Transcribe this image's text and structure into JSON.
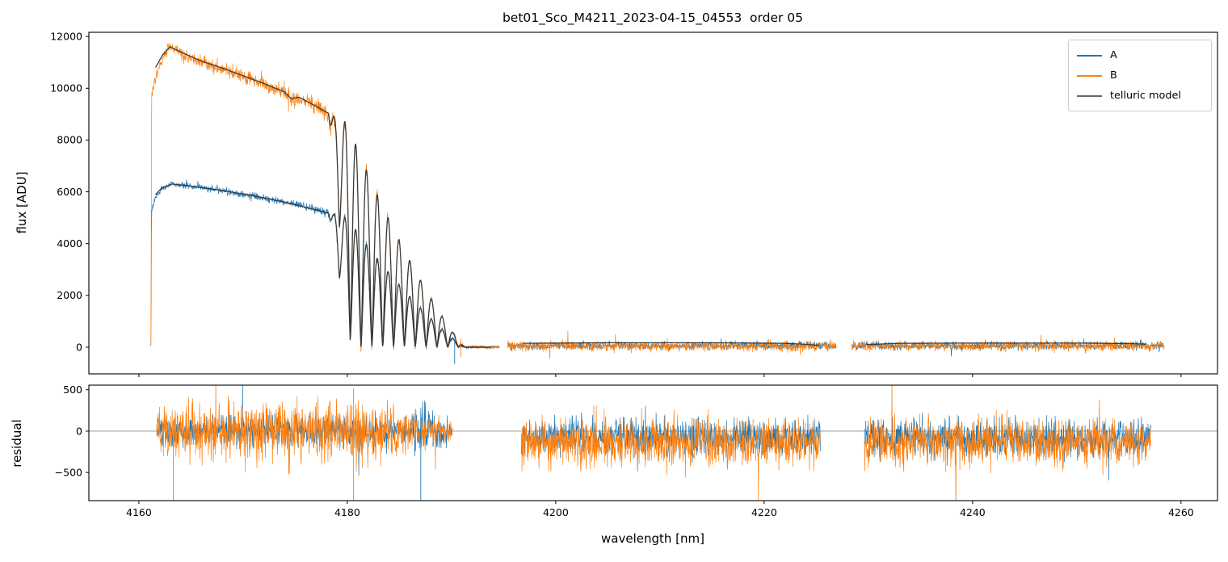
{
  "figure": {
    "title": "bet01_Sco_M4211_2023-04-15_04553  order 05",
    "background": "#ffffff"
  },
  "colors": {
    "A": "#1f77b4",
    "B": "#ff7f0e",
    "model": "#3a3a3a",
    "model_legend": "#666666",
    "axis": "#000000",
    "zero_line": "#8a8a8a"
  },
  "chart_data": [
    {
      "type": "line",
      "id": "flux-panel",
      "ylabel": "flux [ADU]",
      "xlim": [
        4155.2,
        4263.5
      ],
      "ylim": [
        -1030,
        12160
      ],
      "xticks": {
        "values": [
          4160,
          4180,
          4200,
          4220,
          4240,
          4260
        ],
        "labels": [
          "4160",
          "4180",
          "4200",
          "4220",
          "4240",
          "4260"
        ],
        "show_labels": false
      },
      "yticks": {
        "values": [
          0,
          2000,
          4000,
          6000,
          8000,
          10000,
          12000
        ],
        "labels": [
          "0",
          "2000",
          "4000",
          "6000",
          "8000",
          "10000",
          "12000"
        ]
      },
      "legend": {
        "position": "upper right",
        "items": [
          {
            "label": "A",
            "color": "#1f77b4"
          },
          {
            "label": "B",
            "color": "#ff7f0e"
          },
          {
            "label": "telluric model",
            "color": "#666666"
          }
        ]
      },
      "telluric_band": {
        "start": 4178.2,
        "period": 1.04,
        "cutoff": 4191.3,
        "depth_ramp": 2.2,
        "peak_env_start": 4180.0,
        "peak_env_power": 1.15,
        "hump_power": 1.25
      },
      "series": [
        {
          "name": "A",
          "color": "#1f77b4",
          "lw": 0.7,
          "segments": [
            {
              "x0": 4161.15,
              "x1": 4194.6,
              "n": 1150,
              "telluric": true,
              "anchors": [
                [
                  4161.15,
                  30
                ],
                [
                  4161.22,
                  5250
                ],
                [
                  4161.6,
                  5800
                ],
                [
                  4162.2,
                  6100
                ],
                [
                  4163.2,
                  6330
                ],
                [
                  4164.5,
                  6250
                ],
                [
                  4166,
                  6180
                ],
                [
                  4168,
                  6050
                ],
                [
                  4170,
                  5900
                ],
                [
                  4172,
                  5750
                ],
                [
                  4174,
                  5600
                ],
                [
                  4175.5,
                  5480
                ],
                [
                  4177,
                  5300
                ],
                [
                  4178.5,
                  5150
                ],
                [
                  4180,
                  5000
                ],
                [
                  4182,
                  4850
                ],
                [
                  4185,
                  4700
                ],
                [
                  4188,
                  4600
                ],
                [
                  4191.3,
                  4500
                ],
                [
                  4194.6,
                  4430
                ]
              ],
              "noise": [
                [
                  4161.3,
                  80
                ],
                [
                  4165,
                  90
                ],
                [
                  4172,
                  100
                ],
                [
                  4178,
                  120
                ],
                [
                  4182,
                  140
                ],
                [
                  4185,
                  90
                ],
                [
                  4188,
                  60
                ],
                [
                  4191,
                  45
                ],
                [
                  4194.6,
                  40
                ]
              ]
            },
            {
              "x0": 4195.4,
              "x1": 4226.9,
              "n": 1000,
              "anchors": [
                [
                  4195.4,
                  60
                ],
                [
                  4226.9,
                  60
                ]
              ],
              "noise": 115
            },
            {
              "x0": 4228.4,
              "x1": 4258.4,
              "n": 960,
              "anchors": [
                [
                  4228.4,
                  60
                ],
                [
                  4258.4,
                  60
                ]
              ],
              "noise": 115
            }
          ]
        },
        {
          "name": "B",
          "color": "#ff7f0e",
          "lw": 0.7,
          "segments": [
            {
              "x0": 4161.15,
              "x1": 4194.6,
              "n": 1150,
              "telluric": true,
              "anchors": [
                [
                  4161.15,
                  50
                ],
                [
                  4161.22,
                  9600
                ],
                [
                  4161.5,
                  10300
                ],
                [
                  4162,
                  10900
                ],
                [
                  4162.9,
                  11600
                ],
                [
                  4163.6,
                  11500
                ],
                [
                  4164.5,
                  11250
                ],
                [
                  4166,
                  11000
                ],
                [
                  4168,
                  10750
                ],
                [
                  4170,
                  10450
                ],
                [
                  4172,
                  10150
                ],
                [
                  4174,
                  9800
                ],
                [
                  4174.6,
                  9550
                ],
                [
                  4175.4,
                  9600
                ],
                [
                  4176.5,
                  9450
                ],
                [
                  4178,
                  9050
                ],
                [
                  4179.5,
                  8750
                ],
                [
                  4181,
                  8500
                ],
                [
                  4183,
                  8250
                ],
                [
                  4185,
                  8050
                ],
                [
                  4188,
                  7850
                ],
                [
                  4191.3,
                  7650
                ],
                [
                  4194.6,
                  7500
                ]
              ],
              "noise": [
                [
                  4161.3,
                  160
                ],
                [
                  4165,
                  180
                ],
                [
                  4170,
                  200
                ],
                [
                  4176,
                  220
                ],
                [
                  4180,
                  280
                ],
                [
                  4183,
                  220
                ],
                [
                  4185.5,
                  160
                ],
                [
                  4188,
                  110
                ],
                [
                  4191,
                  60
                ],
                [
                  4194.6,
                  50
                ]
              ]
            },
            {
              "x0": 4195.4,
              "x1": 4226.9,
              "n": 1000,
              "anchors": [
                [
                  4195.4,
                  40
                ],
                [
                  4226.9,
                  40
                ]
              ],
              "noise": 145
            },
            {
              "x0": 4228.4,
              "x1": 4258.4,
              "n": 960,
              "anchors": [
                [
                  4228.4,
                  40
                ],
                [
                  4258.4,
                  40
                ]
              ],
              "noise": 145
            }
          ]
        },
        {
          "name": "telluric model",
          "color": "#3a3a3a",
          "lw": 1.3,
          "segments": [
            {
              "x0": 4161.6,
              "x1": 4193.8,
              "n": 900,
              "telluric": true,
              "anchors": [
                [
                  4161.6,
                  5900
                ],
                [
                  4162.2,
                  6150
                ],
                [
                  4163.2,
                  6300
                ],
                [
                  4165,
                  6220
                ],
                [
                  4168,
                  6050
                ],
                [
                  4171,
                  5850
                ],
                [
                  4174,
                  5600
                ],
                [
                  4177,
                  5300
                ],
                [
                  4180,
                  5000
                ],
                [
                  4183,
                  4800
                ],
                [
                  4186,
                  4650
                ],
                [
                  4191.3,
                  4480
                ],
                [
                  4193.8,
                  4450
                ]
              ],
              "noise": 0
            },
            {
              "x0": 4161.6,
              "x1": 4193.8,
              "n": 900,
              "telluric": true,
              "anchors": [
                [
                  4161.6,
                  10800
                ],
                [
                  4162.3,
                  11300
                ],
                [
                  4163,
                  11600
                ],
                [
                  4164,
                  11400
                ],
                [
                  4166,
                  11050
                ],
                [
                  4168,
                  10780
                ],
                [
                  4170,
                  10480
                ],
                [
                  4172,
                  10180
                ],
                [
                  4174,
                  9850
                ],
                [
                  4174.6,
                  9600
                ],
                [
                  4175.4,
                  9650
                ],
                [
                  4177,
                  9300
                ],
                [
                  4179,
                  8850
                ],
                [
                  4181,
                  8500
                ],
                [
                  4183,
                  8250
                ],
                [
                  4185,
                  8050
                ],
                [
                  4188,
                  7850
                ],
                [
                  4191.3,
                  7650
                ],
                [
                  4193.8,
                  7500
                ]
              ],
              "noise": 0
            },
            {
              "x0": 4196.9,
              "x1": 4225.3,
              "n": 160,
              "anchors": [
                [
                  4196.9,
                  150
                ],
                [
                  4205,
                  170
                ],
                [
                  4215,
                  170
                ],
                [
                  4222,
                  150
                ],
                [
                  4224,
                  110
                ],
                [
                  4225.3,
                  70
                ]
              ],
              "noise": 0
            },
            {
              "x0": 4229.8,
              "x1": 4256.6,
              "n": 160,
              "anchors": [
                [
                  4229.8,
                  100
                ],
                [
                  4233,
                  150
                ],
                [
                  4240,
                  160
                ],
                [
                  4250,
                  160
                ],
                [
                  4255,
                  140
                ],
                [
                  4256.6,
                  120
                ]
              ],
              "noise": 0
            }
          ]
        }
      ],
      "spikes": [
        {
          "series": "A",
          "x": 4190.3,
          "y1": 200,
          "y2": -650
        },
        {
          "series": "B",
          "x": 4190.9,
          "y1": 100,
          "y2": -380
        }
      ]
    },
    {
      "type": "line",
      "id": "residual-panel",
      "ylabel": "residual",
      "xlabel": "wavelength [nm]",
      "xlim": [
        4155.2,
        4263.5
      ],
      "ylim": [
        -840,
        556
      ],
      "zero_line": true,
      "xticks": {
        "values": [
          4160,
          4180,
          4200,
          4220,
          4240,
          4260
        ],
        "labels": [
          "4160",
          "4180",
          "4200",
          "4220",
          "4240",
          "4260"
        ],
        "show_labels": true
      },
      "yticks": {
        "values": [
          500,
          0,
          -500
        ],
        "labels": [
          "500",
          "0",
          "−500"
        ]
      },
      "series": [
        {
          "name": "A",
          "color": "#1f77b4",
          "lw": 0.7,
          "segments": [
            {
              "x0": 4161.7,
              "x1": 4190.1,
              "n": 950,
              "anchors": [
                [
                  4161.7,
                  0
                ],
                [
                  4190.1,
                  0
                ]
              ],
              "noise": [
                [
                  4161.7,
                  120
                ],
                [
                  4170,
                  140
                ],
                [
                  4178,
                  150
                ],
                [
                  4183,
                  150
                ],
                [
                  4185.5,
                  110
                ],
                [
                  4186.5,
                  260
                ],
                [
                  4188,
                  200
                ],
                [
                  4190.1,
                  90
                ]
              ]
            },
            {
              "x0": 4196.7,
              "x1": 4225.4,
              "n": 950,
              "anchors": [
                [
                  4196.7,
                  -80
                ],
                [
                  4225.4,
                  -80
                ]
              ],
              "noise": 170
            },
            {
              "x0": 4229.6,
              "x1": 4257.1,
              "n": 920,
              "anchors": [
                [
                  4229.6,
                  -80
                ],
                [
                  4257.1,
                  -80
                ]
              ],
              "noise": 170
            }
          ]
        },
        {
          "name": "B",
          "color": "#ff7f0e",
          "lw": 0.7,
          "segments": [
            {
              "x0": 4161.7,
              "x1": 4190.1,
              "n": 950,
              "anchors": [
                [
                  4161.7,
                  0
                ],
                [
                  4190.1,
                  0
                ]
              ],
              "noise": [
                [
                  4161.7,
                  240
                ],
                [
                  4166,
                  260
                ],
                [
                  4172,
                  270
                ],
                [
                  4178,
                  290
                ],
                [
                  4182,
                  300
                ],
                [
                  4184.5,
                  260
                ],
                [
                  4186,
                  180
                ],
                [
                  4187.5,
                  150
                ],
                [
                  4189,
                  120
                ],
                [
                  4190.1,
                  80
                ]
              ]
            },
            {
              "x0": 4196.7,
              "x1": 4225.4,
              "n": 950,
              "anchors": [
                [
                  4196.7,
                  -140
                ],
                [
                  4225.4,
                  -140
                ]
              ],
              "noise": 220
            },
            {
              "x0": 4229.6,
              "x1": 4257.1,
              "n": 920,
              "anchors": [
                [
                  4229.6,
                  -140
                ],
                [
                  4257.1,
                  -140
                ]
              ],
              "noise": 220
            }
          ]
        }
      ],
      "spikes": [
        {
          "series": "A",
          "x": 4187.05,
          "y1": 200,
          "y2": -840
        },
        {
          "series": "B",
          "x": 4163.3,
          "y1": 120,
          "y2": -840
        },
        {
          "series": "B",
          "x": 4180.6,
          "y1": 520,
          "y2": -840
        }
      ]
    }
  ]
}
